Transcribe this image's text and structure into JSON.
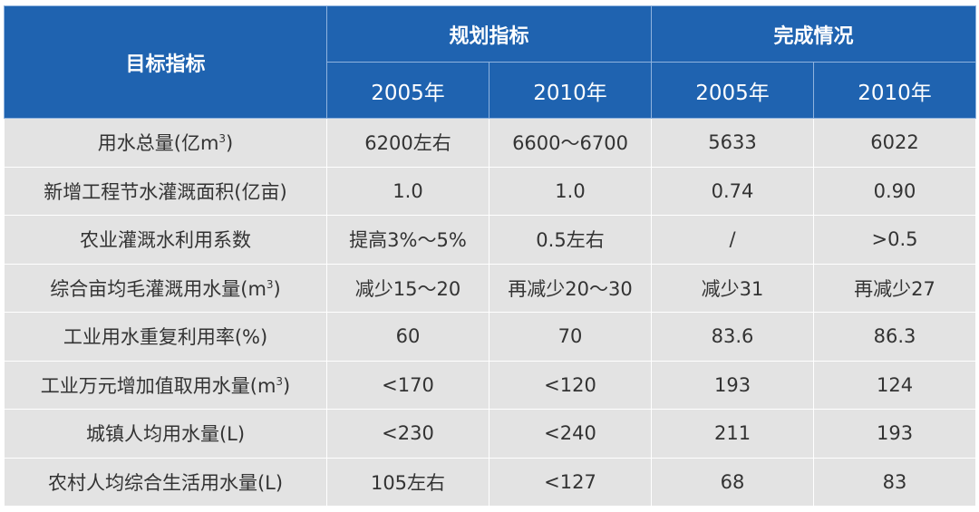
{
  "header": {
    "metric": "目标指标",
    "group_plan": "规划指标",
    "group_actual": "完成情况",
    "years": [
      "2005年",
      "2010年",
      "2005年",
      "2010年"
    ]
  },
  "rows": [
    {
      "label": "用水总量(亿m",
      "sup": "3",
      "tail": ")",
      "cells": [
        "6200左右",
        "6600～6700",
        "5633",
        "6022"
      ]
    },
    {
      "label": "新增工程节水灌溉面积(亿亩)",
      "cells": [
        "1.0",
        "1.0",
        "0.74",
        "0.90"
      ]
    },
    {
      "label": "农业灌溉水利用系数",
      "cells": [
        "提高3%～5%",
        "0.5左右",
        "/",
        ">0.5"
      ]
    },
    {
      "label": "综合亩均毛灌溉用水量(m",
      "sup": "3",
      "tail": ")",
      "cells": [
        "减少15～20",
        "再减少20～30",
        "减少31",
        "再减少27"
      ]
    },
    {
      "label": "工业用水重复利用率(%)",
      "cells": [
        "60",
        "70",
        "83.6",
        "86.3"
      ]
    },
    {
      "label": "工业万元增加值取用水量(m",
      "sup": "3",
      "tail": ")",
      "cells": [
        "<170",
        "<120",
        "193",
        "124"
      ]
    },
    {
      "label": "城镇人均用水量(L)",
      "cells": [
        "<230",
        "<240",
        "211",
        "193"
      ]
    },
    {
      "label": "农村人均综合生活用水量(L)",
      "cells": [
        "105左右",
        "<127",
        "68",
        "83"
      ]
    }
  ]
}
